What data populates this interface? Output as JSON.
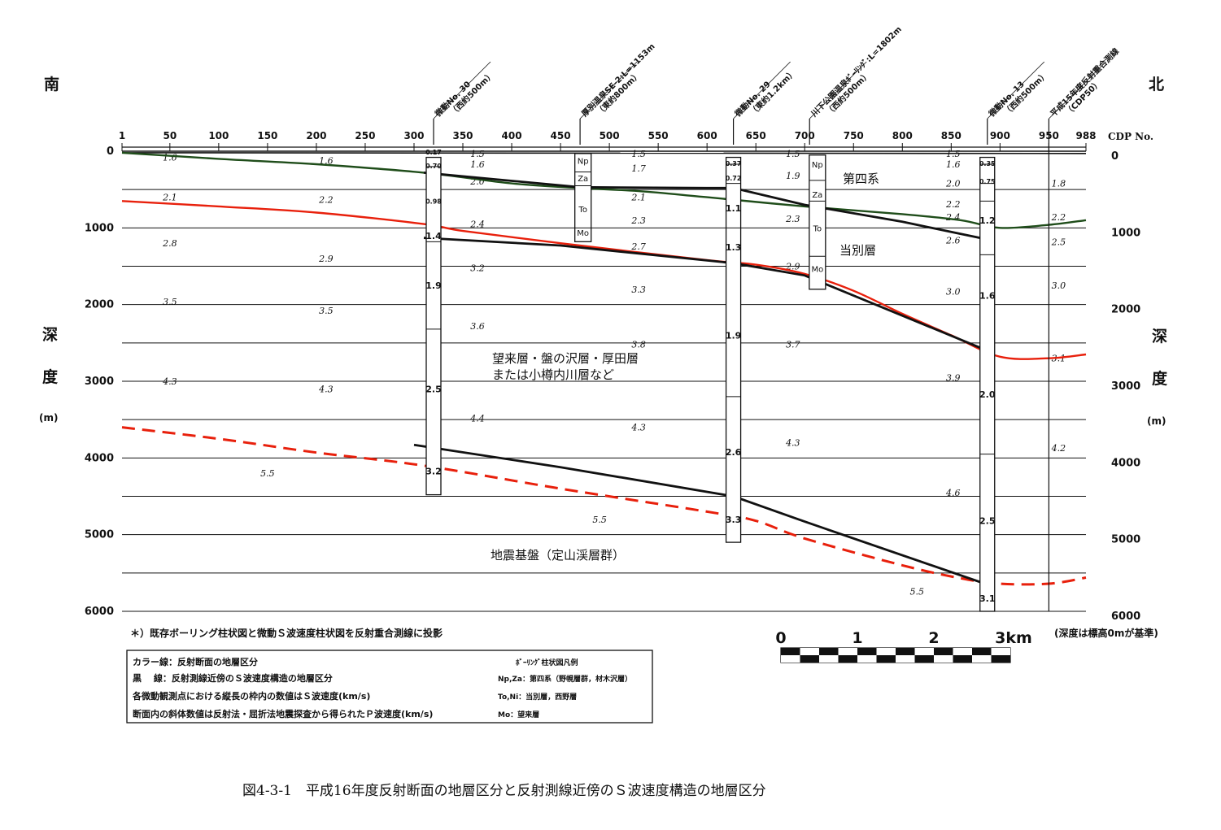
{
  "labels": {
    "south": "南",
    "north": "北",
    "depth_char1": "深",
    "depth_char2": "度",
    "depth_unit": "(m)",
    "cdp_label": "CDP No.",
    "region_quaternary": "第四系",
    "region_tobetsu": "当別層",
    "region_mid_1": "望来層・盤の沢層・厚田層",
    "region_mid_2": "または小樽内川層など",
    "region_basement": "地震基盤（定山渓層群）",
    "note": "＊）既存ボーリング柱状図と微動Ｓ波速度柱状図を反射重合測線に投影",
    "scale_unit_note": "(深度は標高0mが基準)",
    "caption": "図4-3-1　平成16年度反射断面の地層区分と反射測線近傍のＳ波速度構造の地層区分"
  },
  "cdp_ticks": [
    "1",
    "50",
    "100",
    "150",
    "200",
    "250",
    "300",
    "350",
    "400",
    "450",
    "500",
    "550",
    "600",
    "650",
    "700",
    "750",
    "800",
    "850",
    "900",
    "950",
    "988"
  ],
  "depth_ticks": [
    "0",
    "1000",
    "2000",
    "3000",
    "4000",
    "5000",
    "6000"
  ],
  "top_labels": [
    {
      "l1": "微動No. 30",
      "l2": "（西約500m）",
      "cdp": 320
    },
    {
      "l1": "厚別温泉SE-2:L=1153m",
      "l2": "（東約800m）",
      "cdp": 470
    },
    {
      "l1": "微動No. 29",
      "l2": "（東約1.2km）",
      "cdp": 627
    },
    {
      "l1": "川下公園温泉ﾎﾞｰﾘﾝｸﾞ:L=1802m",
      "l2": "（西約500m）",
      "cdp": 705
    },
    {
      "l1": "微動No. 13",
      "l2": "（西約500m）",
      "cdp": 887
    },
    {
      "l1": "平成15年度反射重合測線",
      "l2": "（CDP50）",
      "cdp": 950
    }
  ],
  "pvel": [
    {
      "cdp": 50,
      "d": 80,
      "v": "1.6"
    },
    {
      "cdp": 210,
      "d": 120,
      "v": "1.6"
    },
    {
      "cdp": 50,
      "d": 600,
      "v": "2.1"
    },
    {
      "cdp": 210,
      "d": 630,
      "v": "2.2"
    },
    {
      "cdp": 50,
      "d": 1200,
      "v": "2.8"
    },
    {
      "cdp": 210,
      "d": 1400,
      "v": "2.9"
    },
    {
      "cdp": 50,
      "d": 1960,
      "v": "3.5"
    },
    {
      "cdp": 210,
      "d": 2080,
      "v": "3.5"
    },
    {
      "cdp": 50,
      "d": 3000,
      "v": "4.3"
    },
    {
      "cdp": 210,
      "d": 3100,
      "v": "4.3"
    },
    {
      "cdp": 150,
      "d": 4200,
      "v": "5.5"
    },
    {
      "cdp": 365,
      "d": 30,
      "v": "1.5"
    },
    {
      "cdp": 365,
      "d": 170,
      "v": "1.6"
    },
    {
      "cdp": 365,
      "d": 390,
      "v": "2.0"
    },
    {
      "cdp": 365,
      "d": 950,
      "v": "2.4"
    },
    {
      "cdp": 365,
      "d": 1520,
      "v": "3.2"
    },
    {
      "cdp": 365,
      "d": 2280,
      "v": "3.6"
    },
    {
      "cdp": 365,
      "d": 3480,
      "v": "4.4"
    },
    {
      "cdp": 530,
      "d": 30,
      "v": "1.5"
    },
    {
      "cdp": 530,
      "d": 220,
      "v": "1.7"
    },
    {
      "cdp": 530,
      "d": 600,
      "v": "2.1"
    },
    {
      "cdp": 530,
      "d": 900,
      "v": "2.3"
    },
    {
      "cdp": 530,
      "d": 1240,
      "v": "2.7"
    },
    {
      "cdp": 530,
      "d": 1800,
      "v": "3.3"
    },
    {
      "cdp": 530,
      "d": 2520,
      "v": "3.8"
    },
    {
      "cdp": 530,
      "d": 3600,
      "v": "4.3"
    },
    {
      "cdp": 490,
      "d": 4800,
      "v": "5.5"
    },
    {
      "cdp": 688,
      "d": 30,
      "v": "1.5"
    },
    {
      "cdp": 688,
      "d": 320,
      "v": "1.9"
    },
    {
      "cdp": 688,
      "d": 880,
      "v": "2.3"
    },
    {
      "cdp": 688,
      "d": 1500,
      "v": "2.9"
    },
    {
      "cdp": 688,
      "d": 2520,
      "v": "3.7"
    },
    {
      "cdp": 688,
      "d": 3800,
      "v": "4.3"
    },
    {
      "cdp": 852,
      "d": 30,
      "v": "1.5"
    },
    {
      "cdp": 852,
      "d": 170,
      "v": "1.6"
    },
    {
      "cdp": 852,
      "d": 420,
      "v": "2.0"
    },
    {
      "cdp": 852,
      "d": 690,
      "v": "2.2"
    },
    {
      "cdp": 852,
      "d": 860,
      "v": "2.4"
    },
    {
      "cdp": 852,
      "d": 1160,
      "v": "2.6"
    },
    {
      "cdp": 852,
      "d": 1830,
      "v": "3.0"
    },
    {
      "cdp": 852,
      "d": 2950,
      "v": "3.9"
    },
    {
      "cdp": 852,
      "d": 4450,
      "v": "4.6"
    },
    {
      "cdp": 815,
      "d": 5740,
      "v": "5.5"
    },
    {
      "cdp": 960,
      "d": 420,
      "v": "1.8"
    },
    {
      "cdp": 960,
      "d": 860,
      "v": "2.2"
    },
    {
      "cdp": 960,
      "d": 1180,
      "v": "2.5"
    },
    {
      "cdp": 960,
      "d": 1750,
      "v": "3.0"
    },
    {
      "cdp": 960,
      "d": 2700,
      "v": "3.1"
    },
    {
      "cdp": 960,
      "d": 3870,
      "v": "4.2"
    }
  ],
  "columns": [
    {
      "cdp": 320,
      "top": 80,
      "bottom": 4480,
      "breaks": [
        200,
        1180,
        2320
      ],
      "vals": [
        {
          "d": 0,
          "v": "0.17",
          "small": true
        },
        {
          "d": 180,
          "v": "0.70",
          "small": true
        },
        {
          "d": 640,
          "v": "0.98",
          "small": true
        },
        {
          "d": 1100,
          "v": "1.4"
        },
        {
          "d": 1750,
          "v": "1.9"
        },
        {
          "d": 3100,
          "v": "2.5"
        },
        {
          "d": 4170,
          "v": "3.2"
        }
      ]
    },
    {
      "cdp": 627,
      "top": 80,
      "bottom": 5100,
      "breaks": [
        170,
        420,
        1000,
        3200
      ],
      "vals": [
        {
          "d": 150,
          "v": "0.37",
          "small": true
        },
        {
          "d": 340,
          "v": "0.72",
          "small": true
        },
        {
          "d": 740,
          "v": "1.1"
        },
        {
          "d": 1250,
          "v": "1.3"
        },
        {
          "d": 2400,
          "v": "1.9"
        },
        {
          "d": 3920,
          "v": "2.6"
        },
        {
          "d": 4800,
          "v": "3.3"
        }
      ]
    },
    {
      "cdp": 887,
      "top": 80,
      "bottom": 6000,
      "breaks": [
        170,
        420,
        650,
        1350,
        3950
      ],
      "vals": [
        {
          "d": 150,
          "v": "0.35",
          "small": true
        },
        {
          "d": 380,
          "v": "0.75",
          "small": true
        },
        {
          "d": 900,
          "v": "1.2"
        },
        {
          "d": 1880,
          "v": "1.6"
        },
        {
          "d": 3170,
          "v": "2.0"
        },
        {
          "d": 4820,
          "v": "2.5"
        },
        {
          "d": 5830,
          "v": "3.1"
        }
      ]
    }
  ],
  "boreholes": [
    {
      "cdp": 473,
      "top": 30,
      "bottom": 1180,
      "layers": [
        {
          "d": 120,
          "v": "Np"
        },
        {
          "d": 350,
          "v": "Za"
        },
        {
          "d": 750,
          "v": "To"
        },
        {
          "d": 1060,
          "v": "Mo"
        }
      ],
      "breaks": [
        270,
        450,
        1000
      ]
    },
    {
      "cdp": 713,
      "top": 50,
      "bottom": 1800,
      "layers": [
        {
          "d": 170,
          "v": "Np"
        },
        {
          "d": 560,
          "v": "Za"
        },
        {
          "d": 1000,
          "v": "To"
        },
        {
          "d": 1530,
          "v": "Mo"
        }
      ],
      "breaks": [
        380,
        650,
        1370
      ]
    }
  ],
  "lines": {
    "green": [
      [
        1,
        20
      ],
      [
        100,
        100
      ],
      [
        200,
        170
      ],
      [
        310,
        280
      ],
      [
        400,
        420
      ],
      [
        470,
        480
      ],
      [
        530,
        520
      ],
      [
        600,
        600
      ],
      [
        700,
        720
      ],
      [
        800,
        820
      ],
      [
        860,
        900
      ],
      [
        900,
        1000
      ],
      [
        950,
        960
      ],
      [
        988,
        900
      ]
    ],
    "red": [
      [
        1,
        650
      ],
      [
        100,
        720
      ],
      [
        200,
        800
      ],
      [
        310,
        950
      ],
      [
        350,
        1040
      ],
      [
        450,
        1200
      ],
      [
        600,
        1420
      ],
      [
        650,
        1480
      ],
      [
        700,
        1600
      ],
      [
        750,
        1820
      ],
      [
        800,
        2120
      ],
      [
        850,
        2400
      ],
      [
        900,
        2680
      ],
      [
        950,
        2700
      ],
      [
        988,
        2650
      ]
    ],
    "red_dashed": [
      [
        1,
        3600
      ],
      [
        100,
        3750
      ],
      [
        200,
        3930
      ],
      [
        310,
        4100
      ],
      [
        450,
        4400
      ],
      [
        600,
        4700
      ],
      [
        650,
        4820
      ],
      [
        700,
        5050
      ],
      [
        800,
        5400
      ],
      [
        860,
        5570
      ],
      [
        900,
        5640
      ],
      [
        950,
        5640
      ],
      [
        988,
        5560
      ]
    ],
    "black_top": [
      [
        310,
        280
      ],
      [
        470,
        470
      ],
      [
        600,
        480
      ],
      [
        627,
        480
      ],
      [
        700,
        700
      ],
      [
        800,
        920
      ],
      [
        887,
        1150
      ]
    ],
    "black_mid": [
      [
        310,
        1130
      ],
      [
        450,
        1230
      ],
      [
        627,
        1460
      ],
      [
        700,
        1620
      ],
      [
        887,
        2600
      ]
    ],
    "black_deep": [
      [
        300,
        3830
      ],
      [
        450,
        4120
      ],
      [
        627,
        4500
      ],
      [
        700,
        4830
      ],
      [
        887,
        5650
      ]
    ],
    "surface": [
      [
        1,
        20
      ],
      [
        988,
        30
      ]
    ]
  },
  "legend": {
    "left": [
      "カラー線：反射断面の地層区分",
      "黒　 線：反射測線近傍のＳ波速度構造の地層区分",
      "各微動観測点における縦長の枠内の数値はＳ波速度(km/s)",
      "断面内の斜体数値は反射法・屈折法地震探査から得られたＰ波速度(km/s)"
    ],
    "right_title": "ﾎﾞｰﾘﾝｸﾞ柱状図凡例",
    "right": [
      "Np,Za：第四系（野幌層群，材木沢層）",
      "To,Ni：当別層，西野層",
      "Mo：望来層"
    ],
    "colors": {
      "green": "#1f4d1a",
      "red": "#e8200c",
      "black": "#111111"
    }
  },
  "scale_bar": {
    "ticks": [
      "0",
      "1",
      "2",
      "3km"
    ]
  }
}
